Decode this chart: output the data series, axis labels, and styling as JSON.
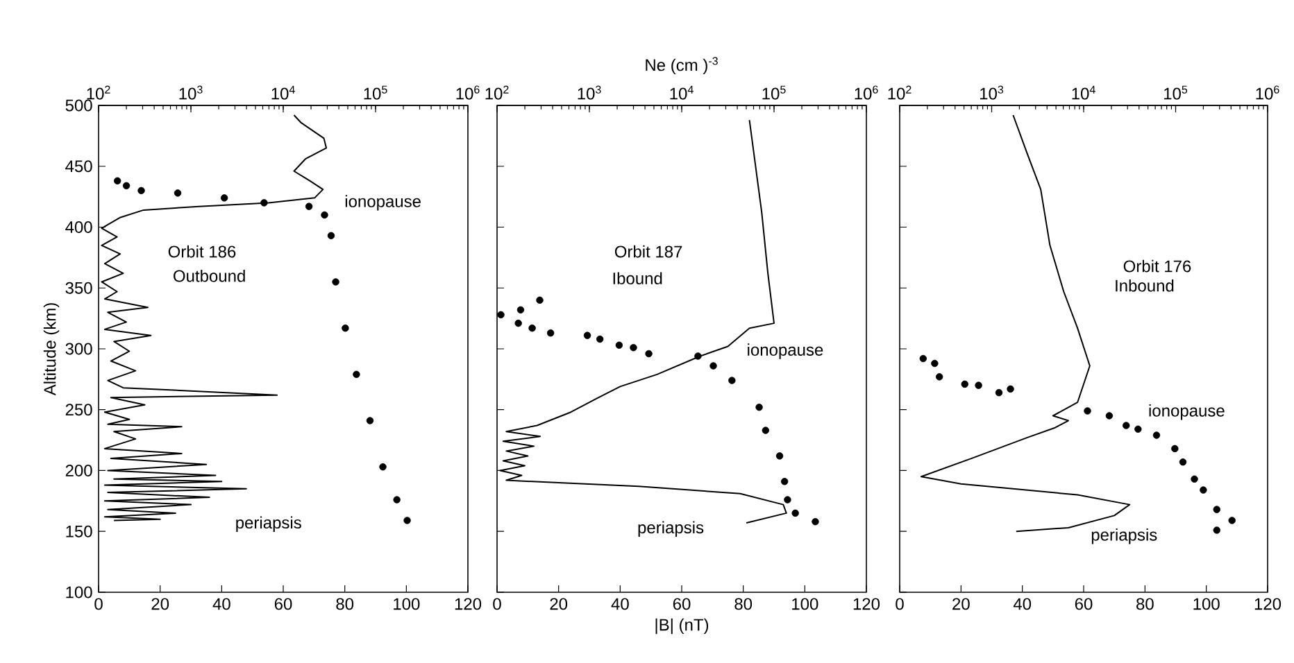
{
  "chart_data": [
    {
      "type": "line",
      "ylabel": "Altitude (km)",
      "xlim": [
        0,
        120
      ],
      "xticks": [
        0,
        20,
        40,
        60,
        80,
        100,
        120
      ],
      "x2lim": [
        100,
        1000000
      ],
      "x2ticks": [
        {
          "value": 100,
          "label": "10$^{2}$"
        },
        {
          "value": 1000,
          "label": "10$^{3}$"
        },
        {
          "value": 10000,
          "label": "10$^{4}$"
        },
        {
          "value": 100000,
          "label": "10$^{5}$"
        },
        {
          "value": 1000000,
          "label": "10$^{6}$"
        }
      ],
      "log": "x2",
      "ylim": [
        100,
        500
      ],
      "yticks": [
        100,
        150,
        200,
        250,
        300,
        350,
        400,
        450,
        500
      ],
      "series": [
        {
          "color": "#000000",
          "x": [
            63.5,
            65.7,
            73.2,
            74,
            67.2,
            63.5,
            68.7,
            72.9,
            70.2,
            55.2,
            32.6,
            14.6,
            7.1,
            1,
            6,
            1,
            7,
            2,
            8,
            1,
            6,
            2,
            16,
            3,
            9,
            2,
            17,
            5,
            10,
            4,
            12,
            3,
            8,
            58,
            4,
            15,
            2,
            10,
            3,
            27,
            5,
            12,
            2,
            27,
            4,
            35,
            3,
            38,
            5,
            40,
            2,
            48,
            3,
            36,
            2,
            30,
            3,
            25,
            2,
            20,
            5
          ],
          "values": [
            492,
            486,
            473,
            465,
            456,
            446,
            438,
            431,
            424,
            420,
            417,
            414,
            408,
            399,
            392,
            385,
            378,
            370,
            362,
            355,
            347,
            341,
            334,
            330,
            322,
            316,
            311,
            306,
            298,
            290,
            282,
            274,
            268,
            262,
            260,
            254,
            248,
            242,
            238,
            236,
            232,
            226,
            218,
            214,
            210,
            205,
            200,
            196,
            193,
            191,
            188,
            185,
            182,
            178,
            175,
            172,
            168,
            165,
            162,
            160,
            159
          ]
        },
        {
          "type": "scatter",
          "axis": "x2",
          "marker": "circle",
          "color": "#000000",
          "x": [
            160,
            200,
            290,
            720,
            2300,
            6200,
            19000,
            28000,
            33000,
            37000,
            47000,
            62000,
            87000,
            120000,
            170000,
            220000
          ],
          "values": [
            438,
            434,
            430,
            428,
            424,
            420,
            417,
            410,
            393,
            355,
            317,
            279,
            241,
            203,
            176,
            159
          ]
        }
      ],
      "annotations": [
        "Orbit 186",
        "Outbound",
        "ionopause",
        "periapsis"
      ]
    },
    {
      "type": "line",
      "xlabel": "|B| (nT)",
      "x2label": "Ne (cm )$^{-3}$",
      "xlim": [
        0,
        120
      ],
      "xticks": [
        0,
        20,
        40,
        60,
        80,
        100,
        120
      ],
      "x2lim": [
        100,
        1000000
      ],
      "x2ticks": [
        {
          "value": 100,
          "label": "10$^{2}$"
        },
        {
          "value": 1000,
          "label": "10$^{3}$"
        },
        {
          "value": 10000,
          "label": "10$^{4}$"
        },
        {
          "value": 100000,
          "label": "10$^{5}$"
        },
        {
          "value": 1000000,
          "label": "10$^{6}$"
        }
      ],
      "log": "x2",
      "ylim": [
        100,
        500
      ],
      "yticks": [
        100,
        150,
        200,
        250,
        300,
        350,
        400,
        450,
        500
      ],
      "tick_labels": "x",
      "series": [
        {
          "color": "#000000",
          "x": [
            82,
            84,
            86,
            88,
            90,
            82,
            75,
            66,
            52,
            40,
            33,
            24,
            13,
            3,
            14,
            2,
            12,
            3,
            10,
            2,
            9,
            1,
            8,
            3,
            20,
            46,
            79,
            93,
            94,
            81
          ],
          "values": [
            488,
            450,
            412,
            362,
            321,
            317,
            302,
            294,
            279,
            269,
            260,
            248,
            237,
            232,
            228,
            224,
            220,
            216,
            212,
            208,
            204,
            200,
            196,
            192,
            190,
            187,
            181,
            172,
            165,
            157
          ]
        },
        {
          "type": "scatter",
          "axis": "x2",
          "marker": "circle",
          "color": "#000000",
          "x": [
            110,
            180,
            170,
            290,
            240,
            380,
            950,
            1300,
            2100,
            3000,
            4400,
            15000,
            22000,
            35000,
            69000,
            81000,
            115000,
            130000,
            140000,
            170000,
            280000
          ],
          "values": [
            328,
            332,
            321,
            340,
            317,
            313,
            311,
            308,
            303,
            301,
            296,
            294,
            286,
            274,
            252,
            233,
            212,
            191,
            176,
            165,
            158
          ]
        }
      ],
      "annotations": [
        "Orbit 187",
        "Ibound",
        "ionopause",
        "periapsis"
      ]
    },
    {
      "type": "line",
      "xlim": [
        0,
        120
      ],
      "xticks": [
        0,
        20,
        40,
        60,
        80,
        100,
        120
      ],
      "x2lim": [
        100,
        1000000
      ],
      "x2ticks": [
        {
          "value": 100,
          "label": "10$^{2}$"
        },
        {
          "value": 1000,
          "label": "10$^{3}$"
        },
        {
          "value": 10000,
          "label": "10$^{4}$"
        },
        {
          "value": 100000,
          "label": "10$^{5}$"
        },
        {
          "value": 1000000,
          "label": "10$^{6}$"
        }
      ],
      "log": "x2",
      "ylim": [
        100,
        500
      ],
      "yticks": [
        100,
        150,
        200,
        250,
        300,
        350,
        400,
        450,
        500
      ],
      "tick_labels": "x",
      "series": [
        {
          "color": "#000000",
          "x": [
            37,
            41.5,
            46,
            49,
            53.5,
            58,
            62,
            58,
            50,
            55,
            50.5,
            41.5,
            23.5,
            7,
            20,
            58,
            75,
            70,
            55,
            38
          ],
          "values": [
            492,
            461,
            431,
            385,
            347,
            317,
            286,
            256,
            245,
            241,
            235,
            227,
            210,
            195,
            189,
            180,
            172,
            163,
            153,
            150
          ]
        },
        {
          "type": "scatter",
          "axis": "x2",
          "marker": "circle",
          "color": "#000000",
          "x": [
            180,
            240,
            270,
            510,
            720,
            1200,
            1600,
            11000,
            19000,
            29000,
            39000,
            62000,
            98000,
            120000,
            160000,
            200000,
            280000,
            410000,
            280000
          ],
          "values": [
            292,
            288,
            277,
            271,
            270,
            264,
            267,
            249,
            245,
            237,
            234,
            229,
            218,
            207,
            193,
            184,
            168,
            159,
            151
          ]
        }
      ],
      "annotations": [
        "Orbit 176",
        "Inbound",
        "ionopause",
        "periapsis"
      ]
    }
  ]
}
